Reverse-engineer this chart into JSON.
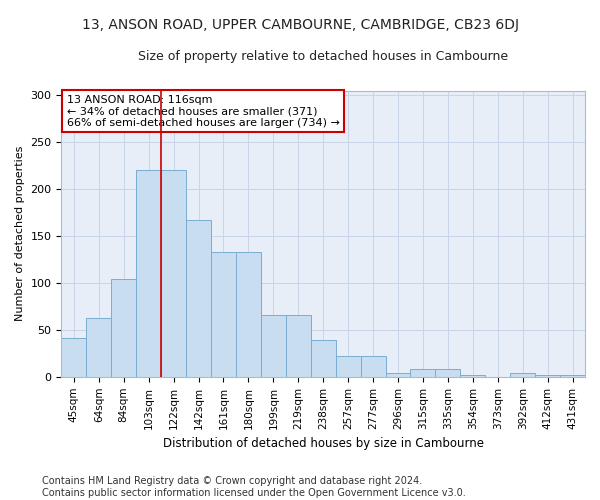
{
  "title1": "13, ANSON ROAD, UPPER CAMBOURNE, CAMBRIDGE, CB23 6DJ",
  "title2": "Size of property relative to detached houses in Cambourne",
  "xlabel": "Distribution of detached houses by size in Cambourne",
  "ylabel": "Number of detached properties",
  "categories": [
    "45sqm",
    "64sqm",
    "84sqm",
    "103sqm",
    "122sqm",
    "142sqm",
    "161sqm",
    "180sqm",
    "199sqm",
    "219sqm",
    "238sqm",
    "257sqm",
    "277sqm",
    "296sqm",
    "315sqm",
    "335sqm",
    "354sqm",
    "373sqm",
    "392sqm",
    "412sqm",
    "431sqm"
  ],
  "values": [
    41,
    63,
    104,
    220,
    220,
    167,
    133,
    133,
    66,
    66,
    39,
    22,
    22,
    4,
    8,
    8,
    2,
    0,
    4,
    2,
    2
  ],
  "bar_color": "#c9ddf0",
  "bar_edge_color": "#7aadd4",
  "grid_color": "#c8d4e8",
  "bg_color": "#e8eef8",
  "fig_bg_color": "#ffffff",
  "annotation_box_text": "13 ANSON ROAD: 116sqm\n← 34% of detached houses are smaller (371)\n66% of semi-detached houses are larger (734) →",
  "annotation_box_facecolor": "#ffffff",
  "annotation_box_edgecolor": "#cc0000",
  "vline_x": 3.5,
  "vline_color": "#cc0000",
  "footnote": "Contains HM Land Registry data © Crown copyright and database right 2024.\nContains public sector information licensed under the Open Government Licence v3.0.",
  "ylim": [
    0,
    305
  ],
  "yticks": [
    0,
    50,
    100,
    150,
    200,
    250,
    300
  ],
  "title1_fontsize": 10,
  "title2_fontsize": 9,
  "xlabel_fontsize": 8.5,
  "ylabel_fontsize": 8,
  "tick_labelsize": 8,
  "xtick_labelsize": 7.5,
  "annot_fontsize": 8,
  "footnote_fontsize": 7
}
